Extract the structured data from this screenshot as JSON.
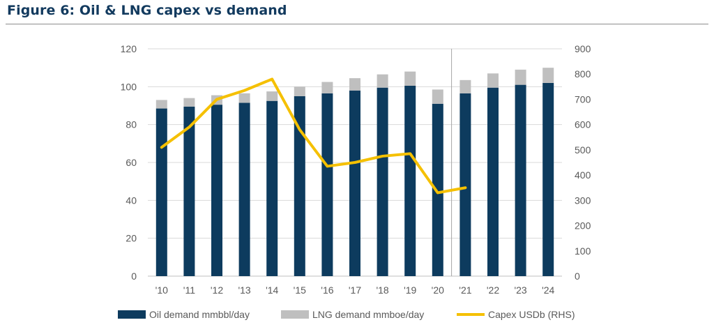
{
  "figure": {
    "title": "Figure 6: Oil & LNG capex vs demand"
  },
  "chart_data": {
    "type": "bar",
    "stacked": true,
    "categories": [
      "'10",
      "'11",
      "'12",
      "'13",
      "'14",
      "'15",
      "'16",
      "'17",
      "'18",
      "'19",
      "'20",
      "'21",
      "'22",
      "'23",
      "'24"
    ],
    "series": [
      {
        "name": "Oil demand mmbbl/day",
        "kind": "bar",
        "axis": "left",
        "color": "#0d3b5e",
        "values": [
          88.5,
          89.5,
          90.5,
          91.5,
          92.5,
          95,
          96.5,
          98,
          99.5,
          100.5,
          91,
          96.5,
          99.5,
          101,
          102
        ]
      },
      {
        "name": "LNG demand mmboe/day",
        "kind": "bar",
        "axis": "left",
        "color": "#bfbfbf",
        "values": [
          4.5,
          4.5,
          5,
          5,
          5,
          5,
          6,
          6.5,
          7,
          7.5,
          7.5,
          7,
          7.5,
          8,
          8
        ]
      },
      {
        "name": "Capex USDb (RHS)",
        "kind": "line",
        "axis": "right",
        "color": "#f5c000",
        "values": [
          510,
          590,
          700,
          735,
          780,
          580,
          435,
          450,
          475,
          485,
          330,
          350,
          null,
          null,
          null
        ]
      }
    ],
    "y_left": {
      "min": 0,
      "max": 120,
      "ticks": [
        0,
        20,
        40,
        60,
        80,
        100,
        120
      ]
    },
    "y_right": {
      "min": 0,
      "max": 900,
      "ticks": [
        0,
        100,
        200,
        300,
        400,
        500,
        600,
        700,
        800,
        900
      ]
    },
    "forecast_divider_after": "'20",
    "legend_position": "bottom",
    "grid": true
  }
}
